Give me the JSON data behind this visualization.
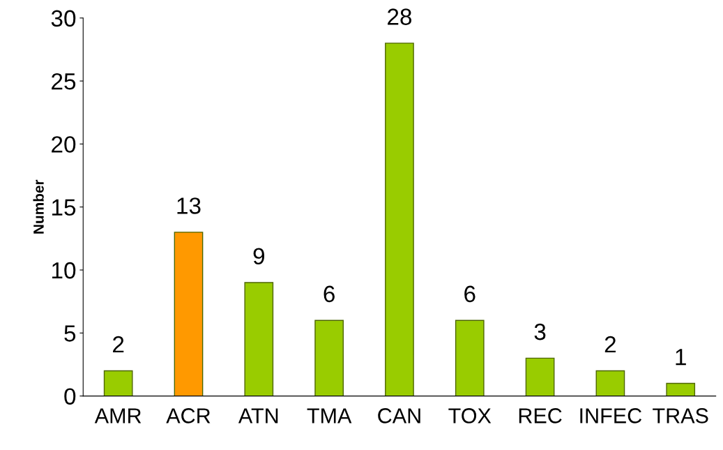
{
  "chart_data": {
    "type": "bar",
    "ylabel": "Number",
    "categories": [
      "AMR",
      "ACR",
      "ATN",
      "TMA",
      "CAN",
      "TOX",
      "REC",
      "INFEC",
      "TRAS"
    ],
    "values": [
      2,
      13,
      9,
      6,
      28,
      6,
      3,
      2,
      1
    ],
    "colors": [
      "#99cc00",
      "#ff9900",
      "#99cc00",
      "#99cc00",
      "#99cc00",
      "#99cc00",
      "#99cc00",
      "#99cc00",
      "#99cc00"
    ],
    "ylim": [
      0,
      30
    ],
    "yticks": [
      0,
      5,
      10,
      15,
      20,
      25,
      30
    ],
    "data_labels": true,
    "grid": false
  }
}
